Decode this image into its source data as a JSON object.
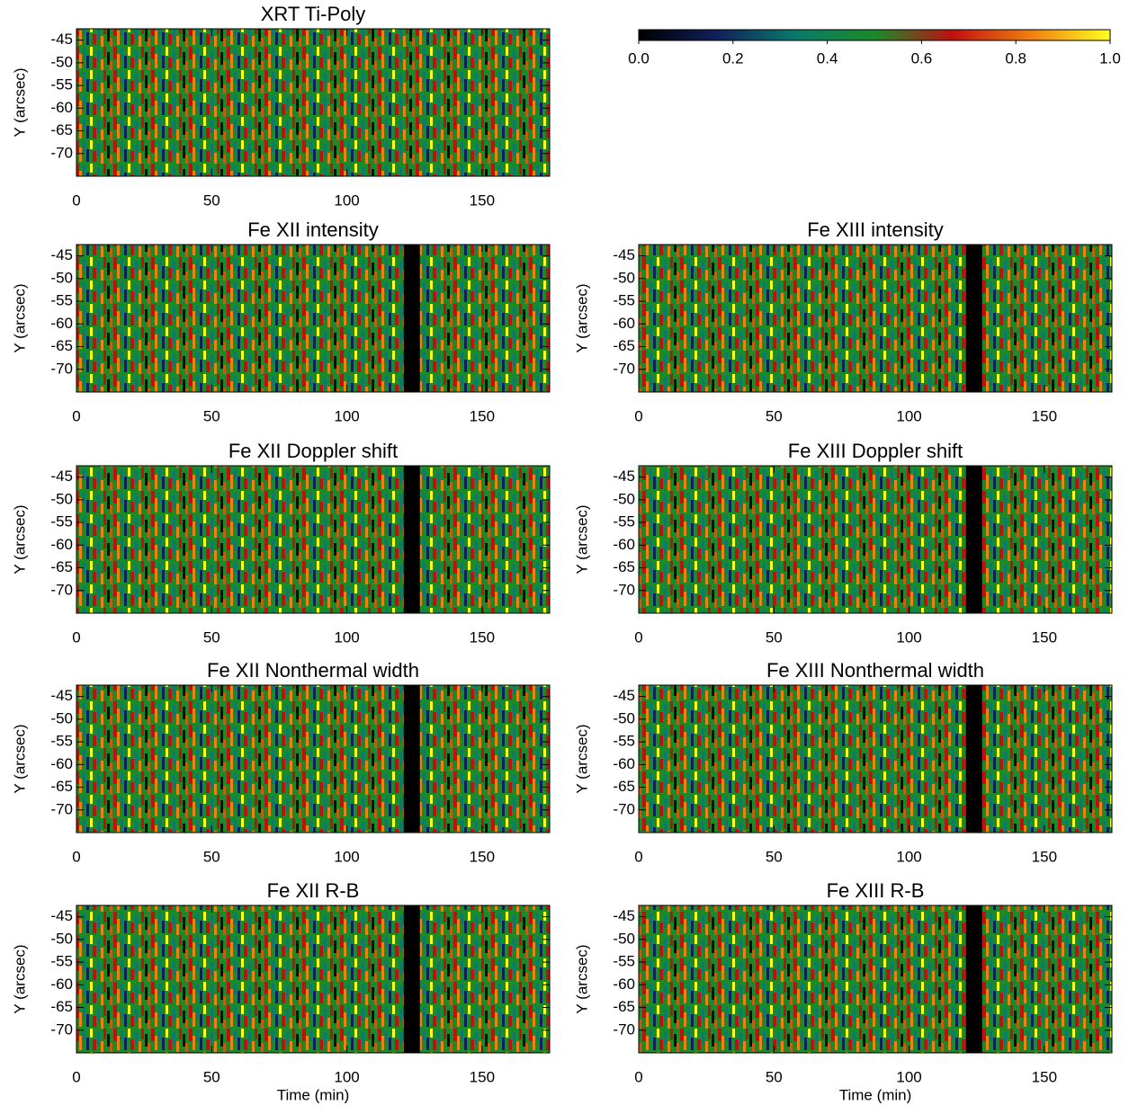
{
  "chart_data": [
    {
      "type": "colorbar",
      "colors": [
        "#000000",
        "#10205a",
        "#0a7a6a",
        "#1a8a2a",
        "#c01010",
        "#f08010",
        "#ffff20"
      ],
      "xlim": [
        0,
        1
      ],
      "xticks": [
        {
          "value": 0,
          "label": "0.0"
        },
        {
          "value": 0.2,
          "label": "0.2"
        },
        {
          "value": 0.4,
          "label": "0.4"
        },
        {
          "value": 0.6,
          "label": "0.6"
        },
        {
          "value": 0.8,
          "label": "0.8"
        },
        {
          "value": 1,
          "label": "1.0"
        }
      ]
    },
    {
      "type": "heatmap",
      "title": "XRT Ti-Poly",
      "ylabel": "Y (arcsec)",
      "xlim": [
        0,
        175
      ],
      "xticks": [
        0,
        50,
        100,
        150
      ],
      "ylim": [
        -75,
        -42.5
      ],
      "yticks": [
        -45,
        -50,
        -55,
        -60,
        -65,
        -70
      ]
    },
    {
      "type": "heatmap",
      "title": "Fe XII intensity",
      "ylabel": "Y (arcsec)",
      "xlim": [
        0,
        175
      ],
      "xticks": [
        0,
        50,
        100,
        150
      ],
      "ylim": [
        -75,
        -42.5
      ],
      "yticks": [
        -45,
        -50,
        -55,
        -60,
        -65,
        -70
      ],
      "gap": [
        121,
        127
      ]
    },
    {
      "type": "heatmap",
      "title": "Fe XIII intensity",
      "ylabel": "Y (arcsec)",
      "xlim": [
        0,
        175
      ],
      "xticks": [
        0,
        50,
        100,
        150
      ],
      "ylim": [
        -75,
        -42.5
      ],
      "yticks": [
        -45,
        -50,
        -55,
        -60,
        -65,
        -70
      ],
      "gap": [
        121,
        127
      ]
    },
    {
      "type": "heatmap",
      "title": "Fe XII Doppler shift",
      "ylabel": "Y (arcsec)",
      "xlim": [
        0,
        175
      ],
      "xticks": [
        0,
        50,
        100,
        150
      ],
      "ylim": [
        -75,
        -42.5
      ],
      "yticks": [
        -45,
        -50,
        -55,
        -60,
        -65,
        -70
      ],
      "gap": [
        121,
        127
      ]
    },
    {
      "type": "heatmap",
      "title": "Fe XIII Doppler shift",
      "ylabel": "Y (arcsec)",
      "xlim": [
        0,
        175
      ],
      "xticks": [
        0,
        50,
        100,
        150
      ],
      "ylim": [
        -75,
        -42.5
      ],
      "yticks": [
        -45,
        -50,
        -55,
        -60,
        -65,
        -70
      ],
      "gap": [
        121,
        127
      ]
    },
    {
      "type": "heatmap",
      "title": "Fe XII Nonthermal width",
      "ylabel": "Y (arcsec)",
      "xlim": [
        0,
        175
      ],
      "xticks": [
        0,
        50,
        100,
        150
      ],
      "ylim": [
        -75,
        -42.5
      ],
      "yticks": [
        -45,
        -50,
        -55,
        -60,
        -65,
        -70
      ],
      "gap": [
        121,
        127
      ]
    },
    {
      "type": "heatmap",
      "title": "Fe XIII Nonthermal width",
      "ylabel": "Y (arcsec)",
      "xlim": [
        0,
        175
      ],
      "xticks": [
        0,
        50,
        100,
        150
      ],
      "ylim": [
        -75,
        -42.5
      ],
      "yticks": [
        -45,
        -50,
        -55,
        -60,
        -65,
        -70
      ],
      "gap": [
        121,
        127
      ]
    },
    {
      "type": "heatmap",
      "title": "Fe XII R-B",
      "ylabel": "Y (arcsec)",
      "xlabel": "Time (min)",
      "xlim": [
        0,
        175
      ],
      "xticks": [
        0,
        50,
        100,
        150
      ],
      "ylim": [
        -75,
        -42.5
      ],
      "yticks": [
        -45,
        -50,
        -55,
        -60,
        -65,
        -70
      ],
      "gap": [
        121,
        127
      ]
    },
    {
      "type": "heatmap",
      "title": "Fe XIII R-B",
      "ylabel": "Y (arcsec)",
      "xlabel": "Time (min)",
      "xlim": [
        0,
        175
      ],
      "xticks": [
        0,
        50,
        100,
        150
      ],
      "ylim": [
        -75,
        -42.5
      ],
      "yticks": [
        -45,
        -50,
        -55,
        -60,
        -65,
        -70
      ],
      "gap": [
        121,
        127
      ]
    }
  ]
}
